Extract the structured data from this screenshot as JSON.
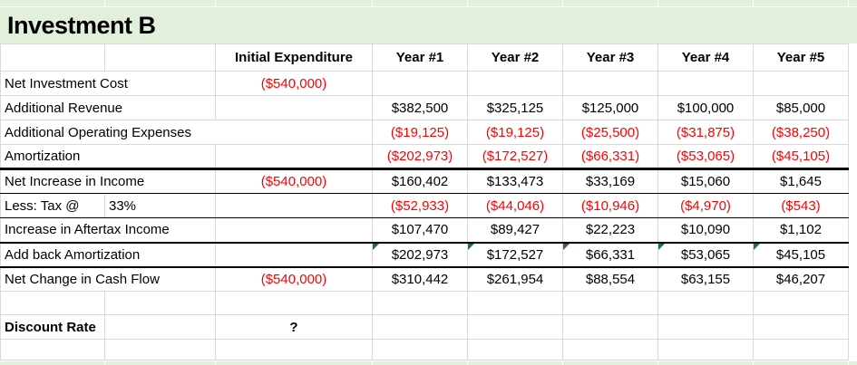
{
  "title": "Investment B",
  "colors": {
    "band_green": "#e2efda",
    "negative_red": "#ff0000",
    "gridline_gray": "#d9d9d9",
    "section_border_black": "#000000",
    "error_triangle_green": "#1e7145"
  },
  "table": {
    "header": {
      "label_a": "",
      "label_b": "",
      "columns": [
        "Initial Expenditure",
        "Year #1",
        "Year #2",
        "Year #3",
        "Year #4",
        "Year #5"
      ]
    },
    "rows": [
      {
        "label": "Net Investment Cost",
        "label_span": 2,
        "initial": "($540,000)",
        "values": [
          "",
          "",
          "",
          "",
          ""
        ],
        "border": null
      },
      {
        "label": "Additional Revenue",
        "label_span": 2,
        "initial": "",
        "values": [
          "$382,500",
          "$325,125",
          "$125,000",
          "$100,000",
          "$85,000"
        ],
        "border": null
      },
      {
        "label": "Additional Operating Expenses",
        "label_span": 3,
        "initial": null,
        "values": [
          "($19,125)",
          "($19,125)",
          "($25,500)",
          "($31,875)",
          "($38,250)"
        ],
        "border": null
      },
      {
        "label": "Amortization",
        "label_span": 2,
        "initial": "",
        "values": [
          "($202,973)",
          "($172,527)",
          "($66,331)",
          "($53,065)",
          "($45,105)"
        ],
        "border": "thick"
      },
      {
        "label": "Net Increase in Income",
        "label_span": 2,
        "initial": "($540,000)",
        "values": [
          "$160,402",
          "$133,473",
          "$33,169",
          "$15,060",
          "$1,645"
        ],
        "border": "thin"
      },
      {
        "label": "Less: Tax @",
        "label_b": "33%",
        "label_span": 1,
        "initial": "",
        "values": [
          "($52,933)",
          "($44,046)",
          "($10,946)",
          "($4,970)",
          "($543)"
        ],
        "border": "thin"
      },
      {
        "label": "Increase in Aftertax Income",
        "label_span": 2,
        "initial": "",
        "values": [
          "$107,470",
          "$89,427",
          "$22,223",
          "$10,090",
          "$1,102"
        ],
        "border": "medium"
      },
      {
        "label": "Add back Amortization",
        "label_span": 2,
        "initial": "",
        "values": [
          "$202,973",
          "$172,527",
          "$66,331",
          "$53,065",
          "$45,105"
        ],
        "border": "medium",
        "error_triangles": true
      },
      {
        "label": "Net Change in Cash Flow",
        "label_span": 2,
        "initial": "($540,000)",
        "values": [
          "$310,442",
          "$261,954",
          "$88,554",
          "$63,155",
          "$46,207"
        ],
        "border": null
      },
      {
        "label": "",
        "label_b": "",
        "label_span": 1,
        "initial": "",
        "values": [
          "",
          "",
          "",
          "",
          ""
        ],
        "border": null,
        "row_kind": "empty1"
      },
      {
        "label": "Discount Rate",
        "label_b": "",
        "label_span": 1,
        "initial": "?",
        "values": [
          "",
          "",
          "",
          "",
          ""
        ],
        "border": null,
        "bold_label": true,
        "bold_initial": true,
        "row_kind": "discount"
      },
      {
        "label": "",
        "label_b": "",
        "label_span": 1,
        "initial": "",
        "values": [
          "",
          "",
          "",
          "",
          ""
        ],
        "border": null,
        "row_kind": "empty2"
      }
    ]
  }
}
